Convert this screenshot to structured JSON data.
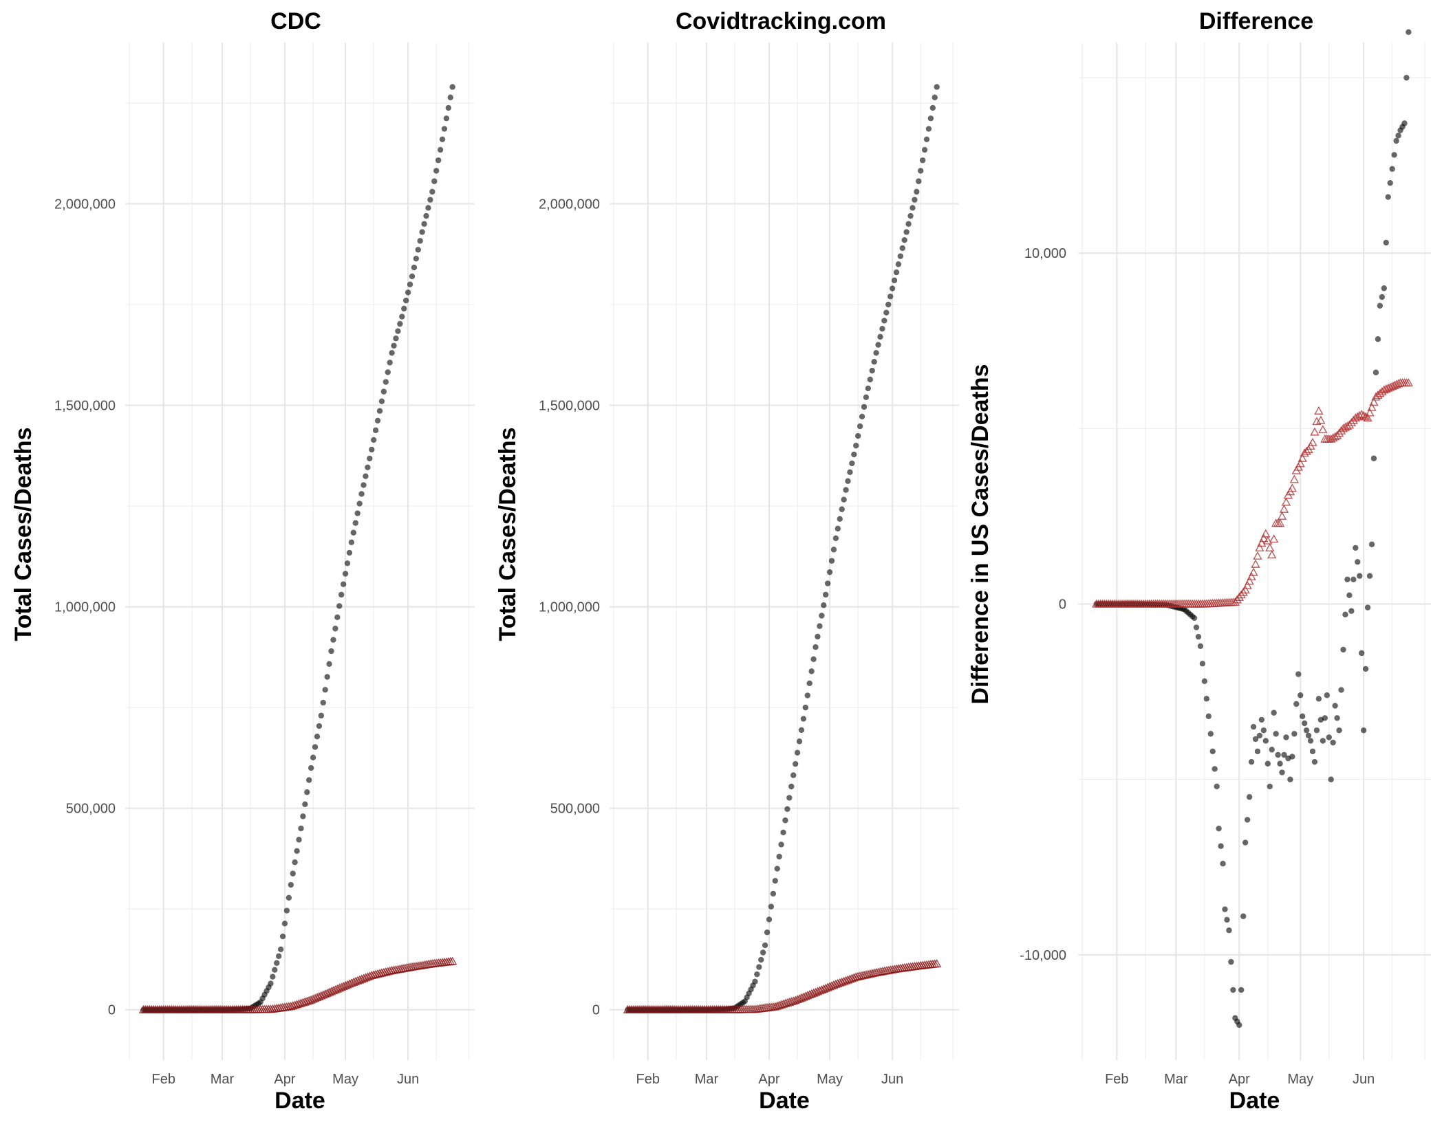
{
  "chart_data": [
    {
      "type": "scatter",
      "title": "CDC",
      "xlabel": "Date",
      "ylabel": "Total Cases/Deaths",
      "x_ticks": [
        "Feb",
        "Mar",
        "Apr",
        "May",
        "Jun"
      ],
      "y_ticks": [
        "0",
        "500,000",
        "1,000,000",
        "1,500,000",
        "2,000,000"
      ],
      "ylim": [
        -125000,
        2400000
      ],
      "xlim": [
        "2020-01-13",
        "2020-07-04"
      ],
      "grid": true,
      "series": [
        {
          "key": "cases",
          "marker": "circle",
          "color": "#000000",
          "x": [
            "2020-01-22",
            "2020-02-15",
            "2020-03-01",
            "2020-03-10",
            "2020-03-15",
            "2020-03-20",
            "2020-03-25",
            "2020-03-30",
            "2020-04-04",
            "2020-04-09",
            "2020-04-14",
            "2020-04-19",
            "2020-04-24",
            "2020-04-29",
            "2020-05-04",
            "2020-05-09",
            "2020-05-14",
            "2020-05-19",
            "2020-05-24",
            "2020-05-29",
            "2020-06-03",
            "2020-06-08",
            "2020-06-13",
            "2020-06-18",
            "2020-06-23"
          ],
          "y": [
            0,
            0,
            30,
            900,
            3500,
            19000,
            65000,
            150000,
            310000,
            450000,
            600000,
            730000,
            890000,
            1030000,
            1160000,
            1280000,
            1390000,
            1510000,
            1630000,
            1720000,
            1820000,
            1930000,
            2030000,
            2160000,
            2290000
          ]
        },
        {
          "key": "deaths",
          "marker": "triangle",
          "color": "#8b1a1a",
          "x": [
            "2020-01-22",
            "2020-03-15",
            "2020-03-25",
            "2020-04-04",
            "2020-04-14",
            "2020-04-24",
            "2020-05-04",
            "2020-05-14",
            "2020-05-24",
            "2020-06-03",
            "2020-06-13",
            "2020-06-23"
          ],
          "y": [
            0,
            60,
            1000,
            8000,
            24000,
            45000,
            66000,
            85000,
            97000,
            106000,
            114000,
            120000
          ]
        }
      ]
    },
    {
      "type": "scatter",
      "title": "Covidtracking.com",
      "xlabel": "Date",
      "ylabel": "Total Cases/Deaths",
      "x_ticks": [
        "Feb",
        "Mar",
        "Apr",
        "May",
        "Jun"
      ],
      "y_ticks": [
        "0",
        "500,000",
        "1,000,000",
        "1,500,000",
        "2,000,000"
      ],
      "ylim": [
        -125000,
        2400000
      ],
      "xlim": [
        "2020-01-13",
        "2020-07-04"
      ],
      "grid": true,
      "series": [
        {
          "key": "cases",
          "marker": "circle",
          "color": "#000000",
          "x": [
            "2020-01-22",
            "2020-02-15",
            "2020-03-01",
            "2020-03-10",
            "2020-03-15",
            "2020-03-20",
            "2020-03-25",
            "2020-03-30",
            "2020-04-04",
            "2020-04-09",
            "2020-04-14",
            "2020-04-19",
            "2020-04-24",
            "2020-04-29",
            "2020-05-04",
            "2020-05-09",
            "2020-05-14",
            "2020-05-19",
            "2020-05-24",
            "2020-05-29",
            "2020-06-03",
            "2020-06-08",
            "2020-06-13",
            "2020-06-18",
            "2020-06-23"
          ],
          "y": [
            0,
            0,
            30,
            1000,
            4200,
            21000,
            70000,
            160000,
            320000,
            470000,
            610000,
            750000,
            900000,
            1030000,
            1170000,
            1290000,
            1400000,
            1520000,
            1630000,
            1730000,
            1830000,
            1930000,
            2030000,
            2160000,
            2290000
          ]
        },
        {
          "key": "deaths",
          "marker": "triangle",
          "color": "#8b1a1a",
          "x": [
            "2020-01-22",
            "2020-03-15",
            "2020-03-25",
            "2020-04-04",
            "2020-04-14",
            "2020-04-24",
            "2020-05-04",
            "2020-05-14",
            "2020-05-24",
            "2020-06-03",
            "2020-06-13",
            "2020-06-23"
          ],
          "y": [
            0,
            60,
            900,
            7500,
            23000,
            43000,
            63000,
            81000,
            92000,
            101000,
            108000,
            114000
          ]
        }
      ]
    },
    {
      "type": "scatter",
      "title": "Difference",
      "xlabel": "Date",
      "ylabel": "Difference in US Cases/Deaths",
      "x_ticks": [
        "Feb",
        "Mar",
        "Apr",
        "May",
        "Jun"
      ],
      "y_ticks": [
        "-10,000",
        "0",
        "10,000"
      ],
      "ylim": [
        -13000,
        16000
      ],
      "xlim": [
        "2020-01-13",
        "2020-07-04"
      ],
      "grid": true,
      "series": [
        {
          "key": "cases",
          "marker": "circle",
          "color": "#000000",
          "x": [
            "2020-01-22",
            "2020-02-10",
            "2020-02-25",
            "2020-03-05",
            "2020-03-10",
            "2020-03-13",
            "2020-03-16",
            "2020-03-19",
            "2020-03-21",
            "2020-03-22",
            "2020-03-24",
            "2020-03-25",
            "2020-03-27",
            "2020-03-28",
            "2020-03-30",
            "2020-04-01",
            "2020-04-02",
            "2020-04-04",
            "2020-04-06",
            "2020-04-08",
            "2020-04-10",
            "2020-04-12",
            "2020-04-14",
            "2020-04-16",
            "2020-04-18",
            "2020-04-20",
            "2020-04-22",
            "2020-04-24",
            "2020-04-26",
            "2020-04-28",
            "2020-04-30",
            "2020-05-02",
            "2020-05-04",
            "2020-05-06",
            "2020-05-08",
            "2020-05-10",
            "2020-05-12",
            "2020-05-14",
            "2020-05-16",
            "2020-05-18",
            "2020-05-20",
            "2020-05-22",
            "2020-05-24",
            "2020-05-26",
            "2020-05-28",
            "2020-05-30",
            "2020-06-01",
            "2020-06-03",
            "2020-06-05",
            "2020-06-07",
            "2020-06-09",
            "2020-06-11",
            "2020-06-13",
            "2020-06-15",
            "2020-06-17",
            "2020-06-19",
            "2020-06-21",
            "2020-06-23"
          ],
          "y": [
            0,
            0,
            -20,
            -150,
            -400,
            -1200,
            -2700,
            -4200,
            -5200,
            -6400,
            -7400,
            -8700,
            -9300,
            -10200,
            -11800,
            -12000,
            -11000,
            -6800,
            -5500,
            -3500,
            -4200,
            -3300,
            -3900,
            -5200,
            -3100,
            -4300,
            -4800,
            -3800,
            -5000,
            -3700,
            -2000,
            -3200,
            -3600,
            -3900,
            -4500,
            -2700,
            -3900,
            -2600,
            -5000,
            -2900,
            -3600,
            -1300,
            700,
            -200,
            1600,
            800,
            -3600,
            -100,
            1700,
            6600,
            8500,
            9000,
            11600,
            12400,
            13200,
            13500,
            13700,
            16300
          ]
        },
        {
          "key": "deaths",
          "marker": "triangle",
          "color": "#b03030",
          "x": [
            "2020-01-22",
            "2020-03-15",
            "2020-03-30",
            "2020-04-04",
            "2020-04-08",
            "2020-04-11",
            "2020-04-14",
            "2020-04-17",
            "2020-04-19",
            "2020-04-21",
            "2020-04-23",
            "2020-04-25",
            "2020-04-27",
            "2020-04-29",
            "2020-05-01",
            "2020-05-03",
            "2020-05-05",
            "2020-05-07",
            "2020-05-10",
            "2020-05-13",
            "2020-05-16",
            "2020-05-19",
            "2020-05-22",
            "2020-05-25",
            "2020-05-28",
            "2020-05-31",
            "2020-06-03",
            "2020-06-07",
            "2020-06-11",
            "2020-06-15",
            "2020-06-19",
            "2020-06-23"
          ],
          "y": [
            0,
            0,
            50,
            400,
            900,
            1600,
            2000,
            1400,
            2300,
            2300,
            2700,
            3100,
            3300,
            3800,
            4000,
            4300,
            4400,
            4600,
            5500,
            4700,
            4700,
            4800,
            5000,
            5100,
            5300,
            5400,
            5300,
            5900,
            6100,
            6200,
            6300,
            6300
          ]
        }
      ]
    }
  ]
}
